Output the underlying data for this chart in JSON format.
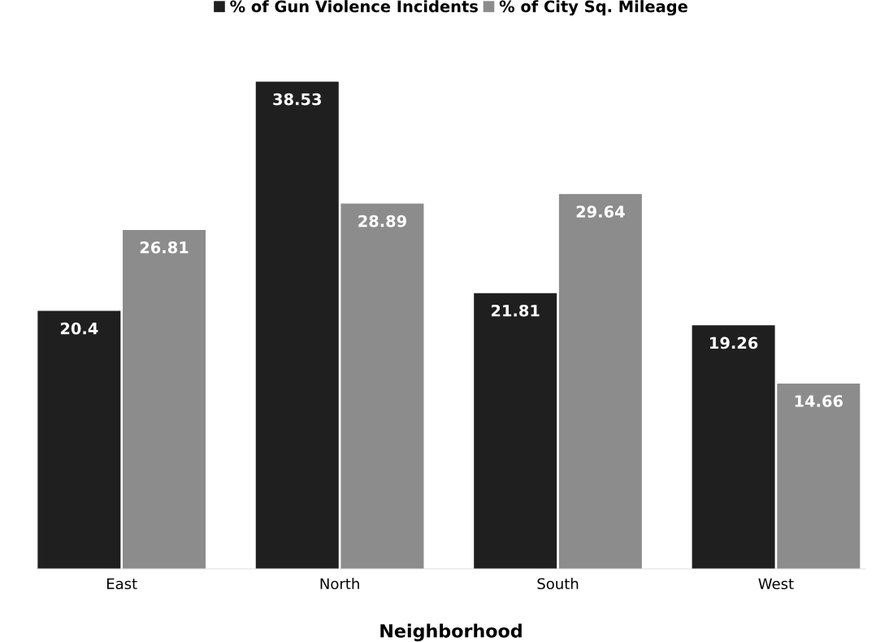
{
  "chart_data": {
    "type": "bar",
    "xlabel": "Neighborhood",
    "categories": [
      "East",
      "North",
      "South",
      "West"
    ],
    "series": [
      {
        "name": "% of Gun Violence Incidents",
        "color": "#1f1f1f",
        "values": [
          20.4,
          38.53,
          21.81,
          19.26
        ]
      },
      {
        "name": "% of City Sq. Mileage",
        "color": "#8c8c8c",
        "values": [
          26.81,
          28.89,
          29.64,
          14.66
        ]
      }
    ],
    "data_labels": true,
    "legend": "top",
    "grid": false
  }
}
